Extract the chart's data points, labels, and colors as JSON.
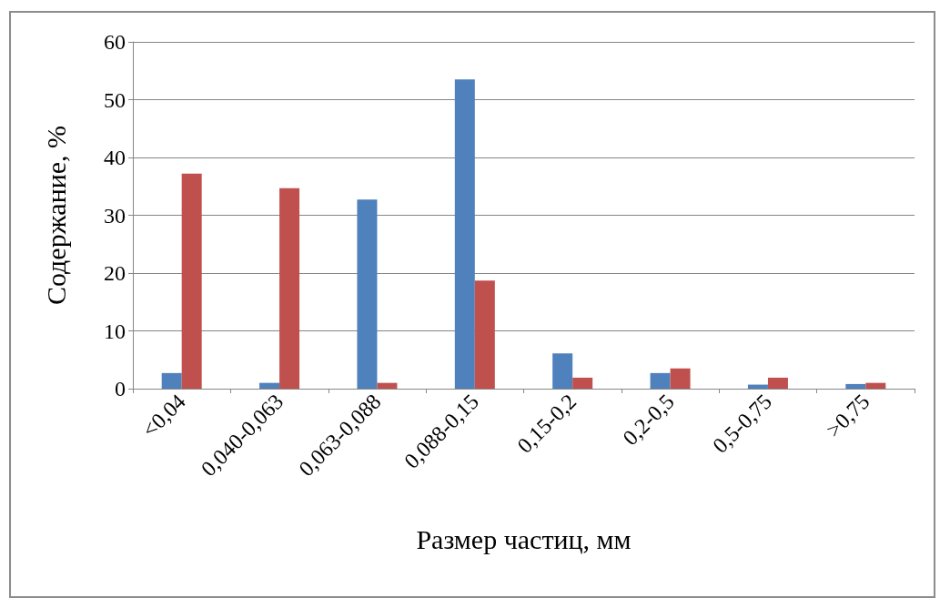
{
  "chart_data": {
    "type": "bar",
    "xlabel": "Размер частиц, мм",
    "ylabel": "Содержание, %",
    "categories": [
      "<0,04",
      "0,040-0,063",
      "0,063-0,088",
      "0,088-0,15",
      "0,15-0,2",
      "0,2-0,5",
      "0,5-0,75",
      ">0,75"
    ],
    "series": [
      {
        "color": "#4f81bd",
        "values": [
          2.7,
          1.0,
          32.7,
          53.5,
          6.1,
          2.7,
          0.7,
          0.8
        ]
      },
      {
        "color": "#c0504d",
        "values": [
          37.2,
          34.7,
          1.0,
          18.7,
          1.9,
          3.5,
          1.9,
          1.0
        ]
      }
    ],
    "ylim": [
      0,
      60
    ],
    "yticks": [
      0,
      10,
      20,
      30,
      40,
      50,
      60
    ],
    "grid": "y"
  }
}
